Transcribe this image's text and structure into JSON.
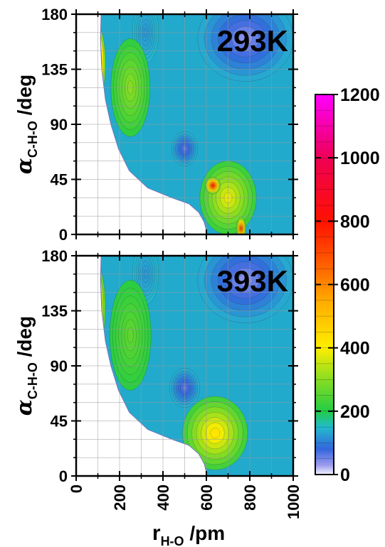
{
  "chart_data": [
    {
      "type": "heatmap",
      "title": "293K",
      "xlabel_main": "r",
      "xlabel_sub": "H-O",
      "xlabel_unit": " /pm",
      "ylabel_main": "α",
      "ylabel_sub": "C-H-O",
      "ylabel_unit": " /deg",
      "xlim": [
        0,
        1000
      ],
      "ylim": [
        0,
        180
      ],
      "x_ticks": [
        "0",
        "200",
        "400",
        "600",
        "800",
        "1000"
      ],
      "y_ticks": [
        "0",
        "45",
        "90",
        "135",
        "180"
      ],
      "x_tick_values": [
        0,
        200,
        400,
        600,
        800,
        1000
      ],
      "y_tick_values": [
        0,
        45,
        90,
        135,
        180
      ],
      "grid": true,
      "zero_boundary": [
        [
          115,
          180
        ],
        [
          112,
          160
        ],
        [
          118,
          135
        ],
        [
          135,
          110
        ],
        [
          160,
          90
        ],
        [
          195,
          70
        ],
        [
          245,
          52
        ],
        [
          330,
          38
        ],
        [
          440,
          30
        ],
        [
          520,
          25
        ],
        [
          565,
          18
        ],
        [
          590,
          10
        ],
        [
          600,
          3
        ],
        [
          605,
          0
        ]
      ],
      "features": [
        {
          "x": 80,
          "y": 140,
          "value": 900,
          "rx": 55,
          "ry": 35
        },
        {
          "x": 630,
          "y": 40,
          "value": 750,
          "rx": 35,
          "ry": 7
        },
        {
          "x": 760,
          "y": 5,
          "value": 700,
          "rx": 22,
          "ry": 9
        },
        {
          "x": 250,
          "y": 120,
          "value": 300,
          "rx": 90,
          "ry": 40
        },
        {
          "x": 700,
          "y": 30,
          "value": 380,
          "rx": 130,
          "ry": 30
        },
        {
          "x": 500,
          "y": 70,
          "value": 60,
          "rx": 60,
          "ry": 14
        },
        {
          "x": 780,
          "y": 160,
          "value": 40,
          "rx": 220,
          "ry": 35
        },
        {
          "x": 320,
          "y": 165,
          "value": 120,
          "rx": 60,
          "ry": 25
        }
      ]
    },
    {
      "type": "heatmap",
      "title": "393K",
      "xlabel_main": "r",
      "xlabel_sub": "H-O",
      "xlabel_unit": " /pm",
      "ylabel_main": "α",
      "ylabel_sub": "C-H-O",
      "ylabel_unit": " /deg",
      "xlim": [
        0,
        1000
      ],
      "ylim": [
        0,
        180
      ],
      "x_ticks": [
        "0",
        "200",
        "400",
        "600",
        "800",
        "1000"
      ],
      "y_ticks": [
        "0",
        "45",
        "90",
        "135",
        "180"
      ],
      "x_tick_values": [
        0,
        200,
        400,
        600,
        800,
        1000
      ],
      "y_tick_values": [
        0,
        45,
        90,
        135,
        180
      ],
      "grid": true,
      "zero_boundary": [
        [
          115,
          180
        ],
        [
          112,
          160
        ],
        [
          118,
          135
        ],
        [
          135,
          110
        ],
        [
          160,
          90
        ],
        [
          195,
          70
        ],
        [
          245,
          52
        ],
        [
          330,
          38
        ],
        [
          440,
          30
        ],
        [
          520,
          25
        ],
        [
          565,
          18
        ],
        [
          590,
          10
        ],
        [
          600,
          3
        ],
        [
          605,
          0
        ]
      ],
      "features": [
        {
          "x": 80,
          "y": 138,
          "value": 650,
          "rx": 55,
          "ry": 38
        },
        {
          "x": 640,
          "y": 35,
          "value": 420,
          "rx": 150,
          "ry": 30
        },
        {
          "x": 250,
          "y": 115,
          "value": 260,
          "rx": 95,
          "ry": 45
        },
        {
          "x": 500,
          "y": 72,
          "value": 60,
          "rx": 70,
          "ry": 16
        },
        {
          "x": 780,
          "y": 160,
          "value": 40,
          "rx": 220,
          "ry": 35
        },
        {
          "x": 320,
          "y": 165,
          "value": 120,
          "rx": 60,
          "ry": 25
        }
      ]
    }
  ],
  "colorbar": {
    "range": [
      0,
      1200
    ],
    "tick_values": [
      0,
      200,
      400,
      600,
      800,
      1000,
      1200
    ],
    "labels": [
      "0",
      "200",
      "400",
      "600",
      "800",
      "1000",
      "1200"
    ],
    "stops": [
      {
        "v": 0,
        "c": "#f4f4ff"
      },
      {
        "v": 30,
        "c": "#9b9bef"
      },
      {
        "v": 80,
        "c": "#3366dd"
      },
      {
        "v": 150,
        "c": "#22bbcc"
      },
      {
        "v": 200,
        "c": "#22cc44"
      },
      {
        "v": 300,
        "c": "#88dd22"
      },
      {
        "v": 400,
        "c": "#ffee00"
      },
      {
        "v": 550,
        "c": "#ffaa00"
      },
      {
        "v": 650,
        "c": "#ff6600"
      },
      {
        "v": 800,
        "c": "#ff1100"
      },
      {
        "v": 1000,
        "c": "#ee0055"
      },
      {
        "v": 1200,
        "c": "#ff00ff"
      }
    ]
  }
}
